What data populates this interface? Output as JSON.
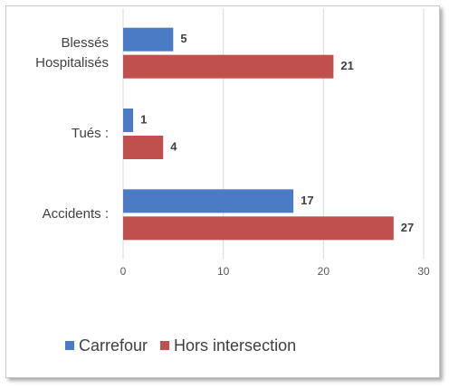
{
  "chart_data": {
    "type": "bar",
    "orientation": "horizontal",
    "categories": [
      "Blessés Hospitalisés",
      "Tués :",
      "Accidents :"
    ],
    "series": [
      {
        "name": "Carrefour",
        "color": "#4a7bc4",
        "values": [
          5,
          1,
          17
        ]
      },
      {
        "name": "Hors intersection",
        "color": "#c0504d",
        "values": [
          21,
          4,
          27
        ]
      }
    ],
    "xlim": [
      0,
      30
    ],
    "xticks": [
      0,
      10,
      20,
      30
    ],
    "grid": true,
    "legend": "bottom"
  }
}
